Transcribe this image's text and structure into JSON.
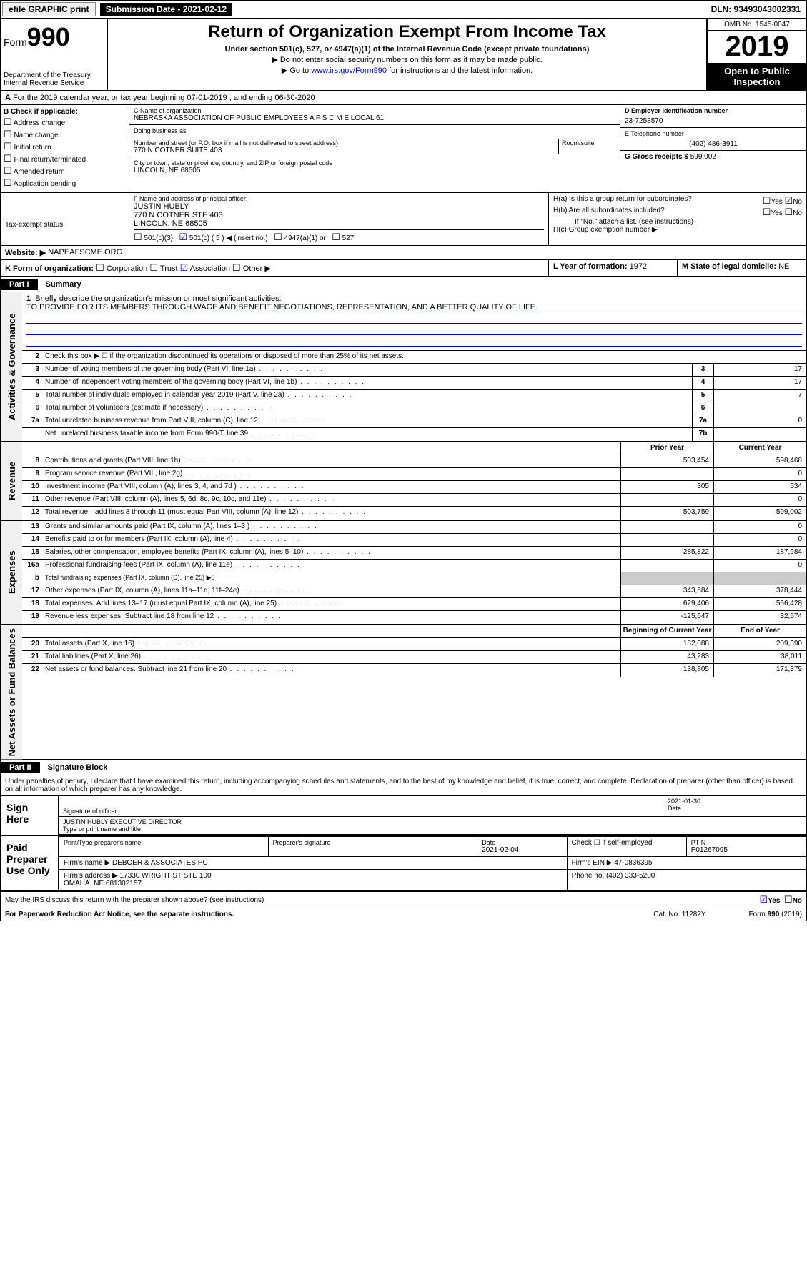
{
  "topbar": {
    "efile": "efile GRAPHIC print",
    "submission": "Submission Date - 2021-02-12",
    "dln": "DLN: 93493043002331"
  },
  "header": {
    "form_label": "Form",
    "form_number": "990",
    "dept": "Department of the Treasury\nInternal Revenue Service",
    "title": "Return of Organization Exempt From Income Tax",
    "subtitle": "Under section 501(c), 527, or 4947(a)(1) of the Internal Revenue Code (except private foundations)",
    "note1": "▶ Do not enter social security numbers on this form as it may be made public.",
    "note2_pre": "▶ Go to ",
    "note2_link": "www.irs.gov/Form990",
    "note2_post": " for instructions and the latest information.",
    "omb": "OMB No. 1545-0047",
    "year": "2019",
    "open": "Open to Public Inspection"
  },
  "line_a": "For the 2019 calendar year, or tax year beginning 07-01-2019    , and ending 06-30-2020",
  "section_b": {
    "label": "B Check if applicable:",
    "items": [
      "Address change",
      "Name change",
      "Initial return",
      "Final return/terminated",
      "Amended return",
      "Application pending"
    ]
  },
  "section_c": {
    "name_label": "C Name of organization",
    "name": "NEBRASKA ASSOCIATION OF PUBLIC EMPLOYEES A F S C M E LOCAL 61",
    "dba_label": "Doing business as",
    "dba": "",
    "addr_label": "Number and street (or P.O. box if mail is not delivered to street address)",
    "room_label": "Room/suite",
    "addr": "770 N COTNER SUITE 403",
    "city_label": "City or town, state or province, country, and ZIP or foreign postal code",
    "city": "LINCOLN, NE  68505"
  },
  "section_d": {
    "ein_label": "D Employer identification number",
    "ein": "23-7258570",
    "phone_label": "E Telephone number",
    "phone": "(402) 486-3911",
    "gross_label": "G Gross receipts $",
    "gross": "599,002"
  },
  "section_f": {
    "label": "F  Name and address of principal officer:",
    "name": "JUSTIN HUBLY",
    "addr1": "770 N COTNER STE 403",
    "addr2": "LINCOLN, NE  68505"
  },
  "section_h": {
    "ha_label": "H(a)  Is this a group return for subordinates?",
    "hb_label": "H(b)  Are all subordinates included?",
    "hb_note": "If \"No,\" attach a list. (see instructions)",
    "hc_label": "H(c)  Group exemption number ▶"
  },
  "tax_exempt": {
    "label": "Tax-exempt status:",
    "opts": [
      "501(c)(3)",
      "501(c) ( 5 ) ◀ (insert no.)",
      "4947(a)(1) or",
      "527"
    ]
  },
  "website": {
    "label": "Website: ▶",
    "value": "NAPEAFSCME.ORG"
  },
  "line_k": {
    "label": "K Form of organization:",
    "opts": [
      "Corporation",
      "Trust",
      "Association",
      "Other ▶"
    ]
  },
  "line_l": {
    "label": "L Year of formation:",
    "value": "1972"
  },
  "line_m": {
    "label": "M State of legal domicile:",
    "value": "NE"
  },
  "part1": {
    "label": "Part I",
    "title": "Summary"
  },
  "summary": {
    "q1": "Briefly describe the organization's mission or most significant activities:",
    "mission": "TO PROVIDE FOR ITS MEMBERS THROUGH WAGE AND BENEFIT NEGOTIATIONS, REPRESENTATION, AND A BETTER QUALITY OF LIFE.",
    "q2": "Check this box ▶ ☐  if the organization discontinued its operations or disposed of more than 25% of its net assets.",
    "governance": [
      {
        "n": "3",
        "t": "Number of voting members of the governing body (Part VI, line 1a)",
        "b": "3",
        "v": "17"
      },
      {
        "n": "4",
        "t": "Number of independent voting members of the governing body (Part VI, line 1b)",
        "b": "4",
        "v": "17"
      },
      {
        "n": "5",
        "t": "Total number of individuals employed in calendar year 2019 (Part V, line 2a)",
        "b": "5",
        "v": "7"
      },
      {
        "n": "6",
        "t": "Total number of volunteers (estimate if necessary)",
        "b": "6",
        "v": ""
      },
      {
        "n": "7a",
        "t": "Total unrelated business revenue from Part VIII, column (C), line 12",
        "b": "7a",
        "v": "0"
      },
      {
        "n": "",
        "t": "Net unrelated business taxable income from Form 990-T, line 39",
        "b": "7b",
        "v": ""
      }
    ],
    "col_headers": {
      "prior": "Prior Year",
      "current": "Current Year"
    },
    "revenue": [
      {
        "n": "8",
        "t": "Contributions and grants (Part VIII, line 1h)",
        "p": "503,454",
        "c": "598,468"
      },
      {
        "n": "9",
        "t": "Program service revenue (Part VIII, line 2g)",
        "p": "",
        "c": "0"
      },
      {
        "n": "10",
        "t": "Investment income (Part VIII, column (A), lines 3, 4, and 7d )",
        "p": "305",
        "c": "534"
      },
      {
        "n": "11",
        "t": "Other revenue (Part VIII, column (A), lines 5, 6d, 8c, 9c, 10c, and 11e)",
        "p": "",
        "c": "0"
      },
      {
        "n": "12",
        "t": "Total revenue—add lines 8 through 11 (must equal Part VIII, column (A), line 12)",
        "p": "503,759",
        "c": "599,002"
      }
    ],
    "expenses": [
      {
        "n": "13",
        "t": "Grants and similar amounts paid (Part IX, column (A), lines 1–3 )",
        "p": "",
        "c": "0"
      },
      {
        "n": "14",
        "t": "Benefits paid to or for members (Part IX, column (A), line 4)",
        "p": "",
        "c": "0"
      },
      {
        "n": "15",
        "t": "Salaries, other compensation, employee benefits (Part IX, column (A), lines 5–10)",
        "p": "285,822",
        "c": "187,984"
      },
      {
        "n": "16a",
        "t": "Professional fundraising fees (Part IX, column (A), line 11e)",
        "p": "",
        "c": "0"
      },
      {
        "n": "b",
        "t": "Total fundraising expenses (Part IX, column (D), line 25) ▶0",
        "p": null,
        "c": null
      },
      {
        "n": "17",
        "t": "Other expenses (Part IX, column (A), lines 11a–11d, 11f–24e)",
        "p": "343,584",
        "c": "378,444"
      },
      {
        "n": "18",
        "t": "Total expenses. Add lines 13–17 (must equal Part IX, column (A), line 25)",
        "p": "629,406",
        "c": "566,428"
      },
      {
        "n": "19",
        "t": "Revenue less expenses. Subtract line 18 from line 12",
        "p": "-125,647",
        "c": "32,574"
      }
    ],
    "col_headers2": {
      "begin": "Beginning of Current Year",
      "end": "End of Year"
    },
    "netassets": [
      {
        "n": "20",
        "t": "Total assets (Part X, line 16)",
        "p": "182,088",
        "c": "209,390"
      },
      {
        "n": "21",
        "t": "Total liabilities (Part X, line 26)",
        "p": "43,283",
        "c": "38,011"
      },
      {
        "n": "22",
        "t": "Net assets or fund balances. Subtract line 21 from line 20",
        "p": "138,805",
        "c": "171,379"
      }
    ]
  },
  "part2": {
    "label": "Part II",
    "title": "Signature Block"
  },
  "perjury": "Under penalties of perjury, I declare that I have examined this return, including accompanying schedules and statements, and to the best of my knowledge and belief, it is true, correct, and complete. Declaration of preparer (other than officer) is based on all information of which preparer has any knowledge.",
  "sign": {
    "here": "Sign Here",
    "date": "2021-01-30",
    "sig_label": "Signature of officer",
    "date_label": "Date",
    "name": "JUSTIN HUBLY  EXECUTIVE DIRECTOR",
    "name_label": "Type or print name and title"
  },
  "paid": {
    "label": "Paid Preparer Use Only",
    "h1": "Print/Type preparer's name",
    "h2": "Preparer's signature",
    "h3": "Date",
    "date": "2021-02-04",
    "h4": "Check ☐ if self-employed",
    "h5": "PTIN",
    "ptin": "P01267095",
    "firm_label": "Firm's name    ▶",
    "firm": "DEBOER & ASSOCIATES PC",
    "ein_label": "Firm's EIN ▶",
    "ein": "47-0836395",
    "addr_label": "Firm's address ▶",
    "addr": "17330 WRIGHT ST STE 100\nOMAHA, NE  681302157",
    "phone_label": "Phone no.",
    "phone": "(402) 333-5200"
  },
  "discuss": "May the IRS discuss this return with the preparer shown above? (see instructions)",
  "footer": {
    "left": "For Paperwork Reduction Act Notice, see the separate instructions.",
    "mid": "Cat. No. 11282Y",
    "right": "Form 990 (2019)"
  },
  "vtabs": {
    "gov": "Activities & Governance",
    "rev": "Revenue",
    "exp": "Expenses",
    "net": "Net Assets or Fund Balances"
  },
  "yes": "Yes",
  "no": "No"
}
